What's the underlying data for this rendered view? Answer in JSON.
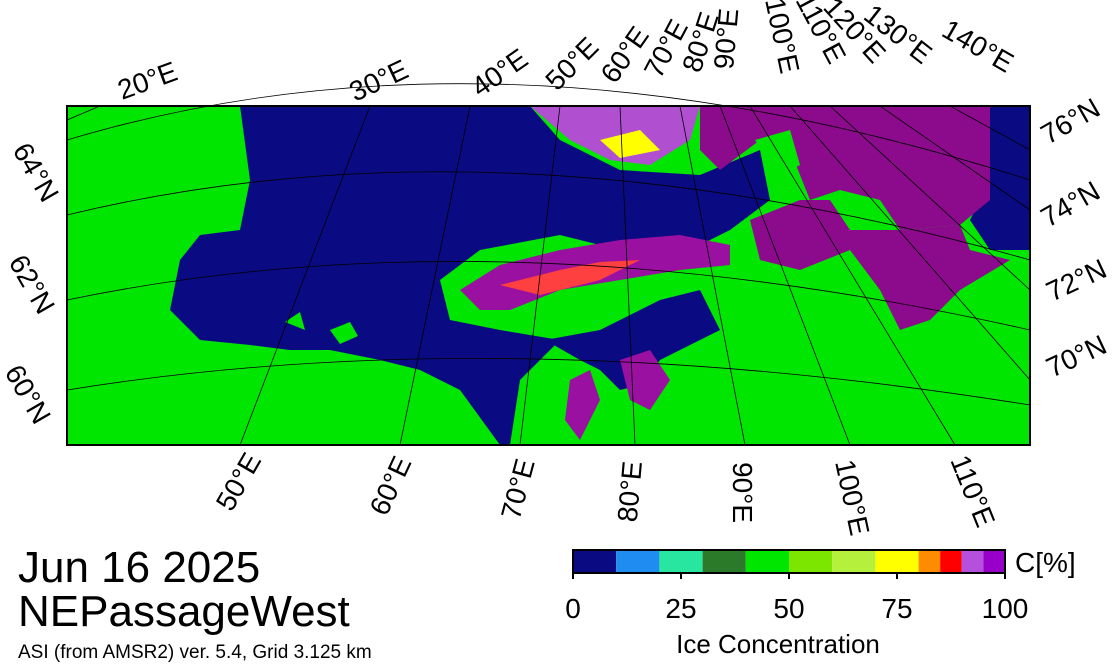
{
  "header": {
    "date": "Jun 16 2025",
    "region": "NEPassageWest",
    "source": "ASI (from AMSR2) ver. 5.4,  Grid 3.125 km"
  },
  "map": {
    "top_lon_labels": [
      "20°E",
      "30°E",
      "40°E",
      "50°E",
      "60°E",
      "70°E",
      "80°E",
      "90°E",
      "100°E",
      "110°E",
      "120°E",
      "130°E",
      "140°E"
    ],
    "bottom_lon_labels": [
      "50°E",
      "60°E",
      "70°E",
      "80°E",
      "90°E",
      "100°E",
      "110°E"
    ],
    "left_lat_labels": [
      "64°N",
      "62°N",
      "60°N"
    ],
    "right_lat_labels": [
      "76°N",
      "74°N",
      "72°N",
      "70°N"
    ]
  },
  "colorbar": {
    "unit_label": "C[%]",
    "title": "Ice Concentration",
    "range": [
      0,
      100
    ],
    "ticks": [
      0,
      25,
      50,
      75,
      100
    ],
    "bounds": [
      0,
      10,
      20,
      30,
      40,
      50,
      60,
      70,
      80,
      85,
      90,
      95,
      100
    ],
    "colors": [
      "#0a0a82",
      "#1e8cf0",
      "#28e6a0",
      "#2a7a2a",
      "#00e600",
      "#7ce600",
      "#b4f03c",
      "#ffff00",
      "#ff8c00",
      "#ff0000",
      "#b450dc",
      "#9600c8"
    ]
  }
}
